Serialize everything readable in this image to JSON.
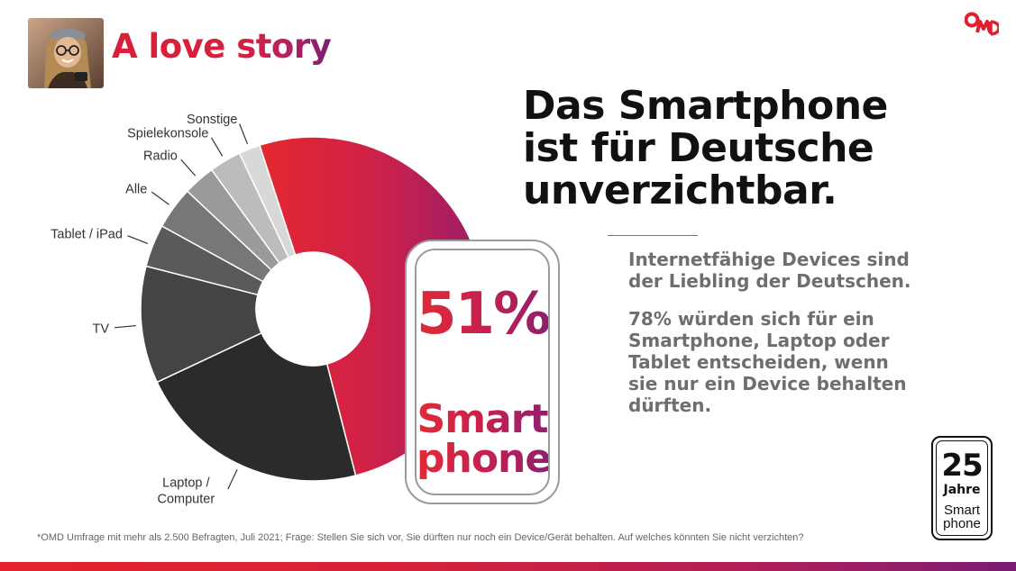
{
  "header": {
    "headline_part1": "A love ",
    "headline_part2": "story"
  },
  "photo": {
    "icon": "woman-with-smartphone-photo"
  },
  "logo": {
    "icon": "omd-logo"
  },
  "title": {
    "line1": "Das Smartphone",
    "line2": "ist für Deutsche",
    "line3": "unverzichtbar."
  },
  "body": {
    "paragraph1": "Internetfähige Devices sind der Liebling der Deutschen.",
    "paragraph2": "78% würden sich für ein Smartphone, Laptop oder Tablet entscheiden, wenn sie nur ein Device behalten dürften."
  },
  "phone": {
    "value": "51%",
    "word_line1": "Smart",
    "word_line2": "phone"
  },
  "footnote": "*OMD Umfrage mit mehr als 2.500 Befragten, Juli 2021; Frage: Stellen Sie sich vor, Sie dürften nur noch ein Device/Gerät behalten. Auf welches könnten Sie nicht verzichten?",
  "badge": {
    "number": "25",
    "label": "Jahre",
    "line1": "Smart",
    "line2": "phone"
  },
  "colors": {
    "accent_red": "#e02b36",
    "accent_purple": "#8e1f6e",
    "text_gray": "#6e6e6e"
  },
  "chart_data": {
    "type": "pie",
    "donut": true,
    "categories": [
      "Smartphone",
      "Laptop / Computer",
      "TV",
      "Tablet / iPad",
      "Alle",
      "Radio",
      "Spielekonsole",
      "Sonstige"
    ],
    "values": [
      51,
      22,
      11,
      4,
      4,
      3,
      3,
      2
    ],
    "colors": [
      "#d92a3a",
      "#2b2b2b",
      "#444444",
      "#5a5a5a",
      "#777777",
      "#9a9a9a",
      "#bcbcbc",
      "#d8d8d8"
    ],
    "slice_labels": [
      "",
      "Laptop /\nComputer",
      "TV",
      "Tablet / iPad",
      "Alle",
      "Radio",
      "Spielekonsole",
      "Sonstige"
    ],
    "title": ""
  }
}
